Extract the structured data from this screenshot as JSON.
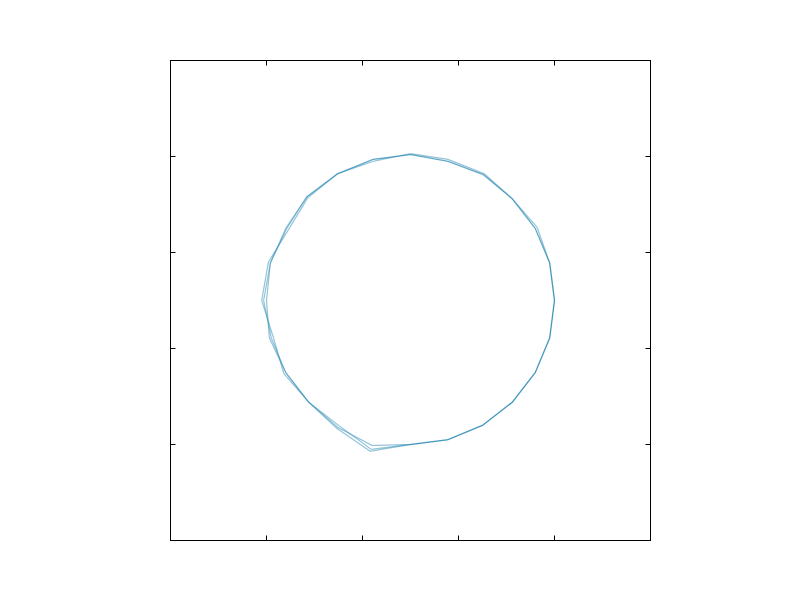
{
  "chart_data": {
    "type": "line",
    "xlim": [
      0,
      5
    ],
    "xticks": [
      1,
      2,
      3,
      4
    ],
    "ylim": [
      0,
      5
    ],
    "yticks": [
      1,
      2,
      3,
      4
    ],
    "closed": true,
    "series": [
      {
        "color": "#2a8ab5",
        "x": [
          4.0,
          3.95,
          3.82,
          3.56,
          3.27,
          2.89,
          2.5,
          2.11,
          1.74,
          1.43,
          1.23,
          1.02,
          0.95,
          1.07,
          1.18,
          1.44,
          1.73,
          2.08,
          2.5,
          2.89,
          3.25,
          3.56,
          3.8,
          3.95
        ],
        "values": [
          2.5,
          2.89,
          3.26,
          3.56,
          3.82,
          3.97,
          4.03,
          3.95,
          3.82,
          3.57,
          3.24,
          2.9,
          2.5,
          2.12,
          1.74,
          1.44,
          1.17,
          0.93,
          1.0,
          1.05,
          1.2,
          1.44,
          1.75,
          2.11
        ]
      },
      {
        "color": "#2a8ab5",
        "x": [
          4.0,
          3.95,
          3.8,
          3.56,
          3.26,
          2.89,
          2.5,
          2.11,
          1.74,
          1.42,
          1.2,
          1.04,
          0.97,
          1.05,
          1.2,
          1.44,
          1.74,
          2.1,
          2.5,
          2.89,
          3.25,
          3.56,
          3.8,
          3.95
        ],
        "values": [
          2.5,
          2.89,
          3.25,
          3.56,
          3.81,
          3.95,
          4.02,
          3.97,
          3.82,
          3.58,
          3.25,
          2.89,
          2.5,
          2.11,
          1.75,
          1.44,
          1.18,
          0.99,
          1.0,
          1.05,
          1.2,
          1.44,
          1.75,
          2.11
        ]
      },
      {
        "color": "#2a8ab5",
        "x": [
          4.0,
          3.95,
          3.8,
          3.56,
          3.26,
          2.89,
          2.5,
          2.11,
          1.74,
          1.42,
          1.21,
          1.04,
          1.0,
          1.03,
          1.2,
          1.44,
          1.75,
          2.09,
          2.5,
          2.89,
          3.25,
          3.56,
          3.8,
          3.95
        ],
        "values": [
          2.5,
          2.89,
          3.25,
          3.56,
          3.81,
          3.95,
          4.02,
          3.97,
          3.82,
          3.58,
          3.25,
          2.89,
          2.5,
          2.11,
          1.75,
          1.44,
          1.2,
          0.95,
          1.0,
          1.05,
          1.2,
          1.44,
          1.75,
          2.11
        ]
      }
    ]
  }
}
